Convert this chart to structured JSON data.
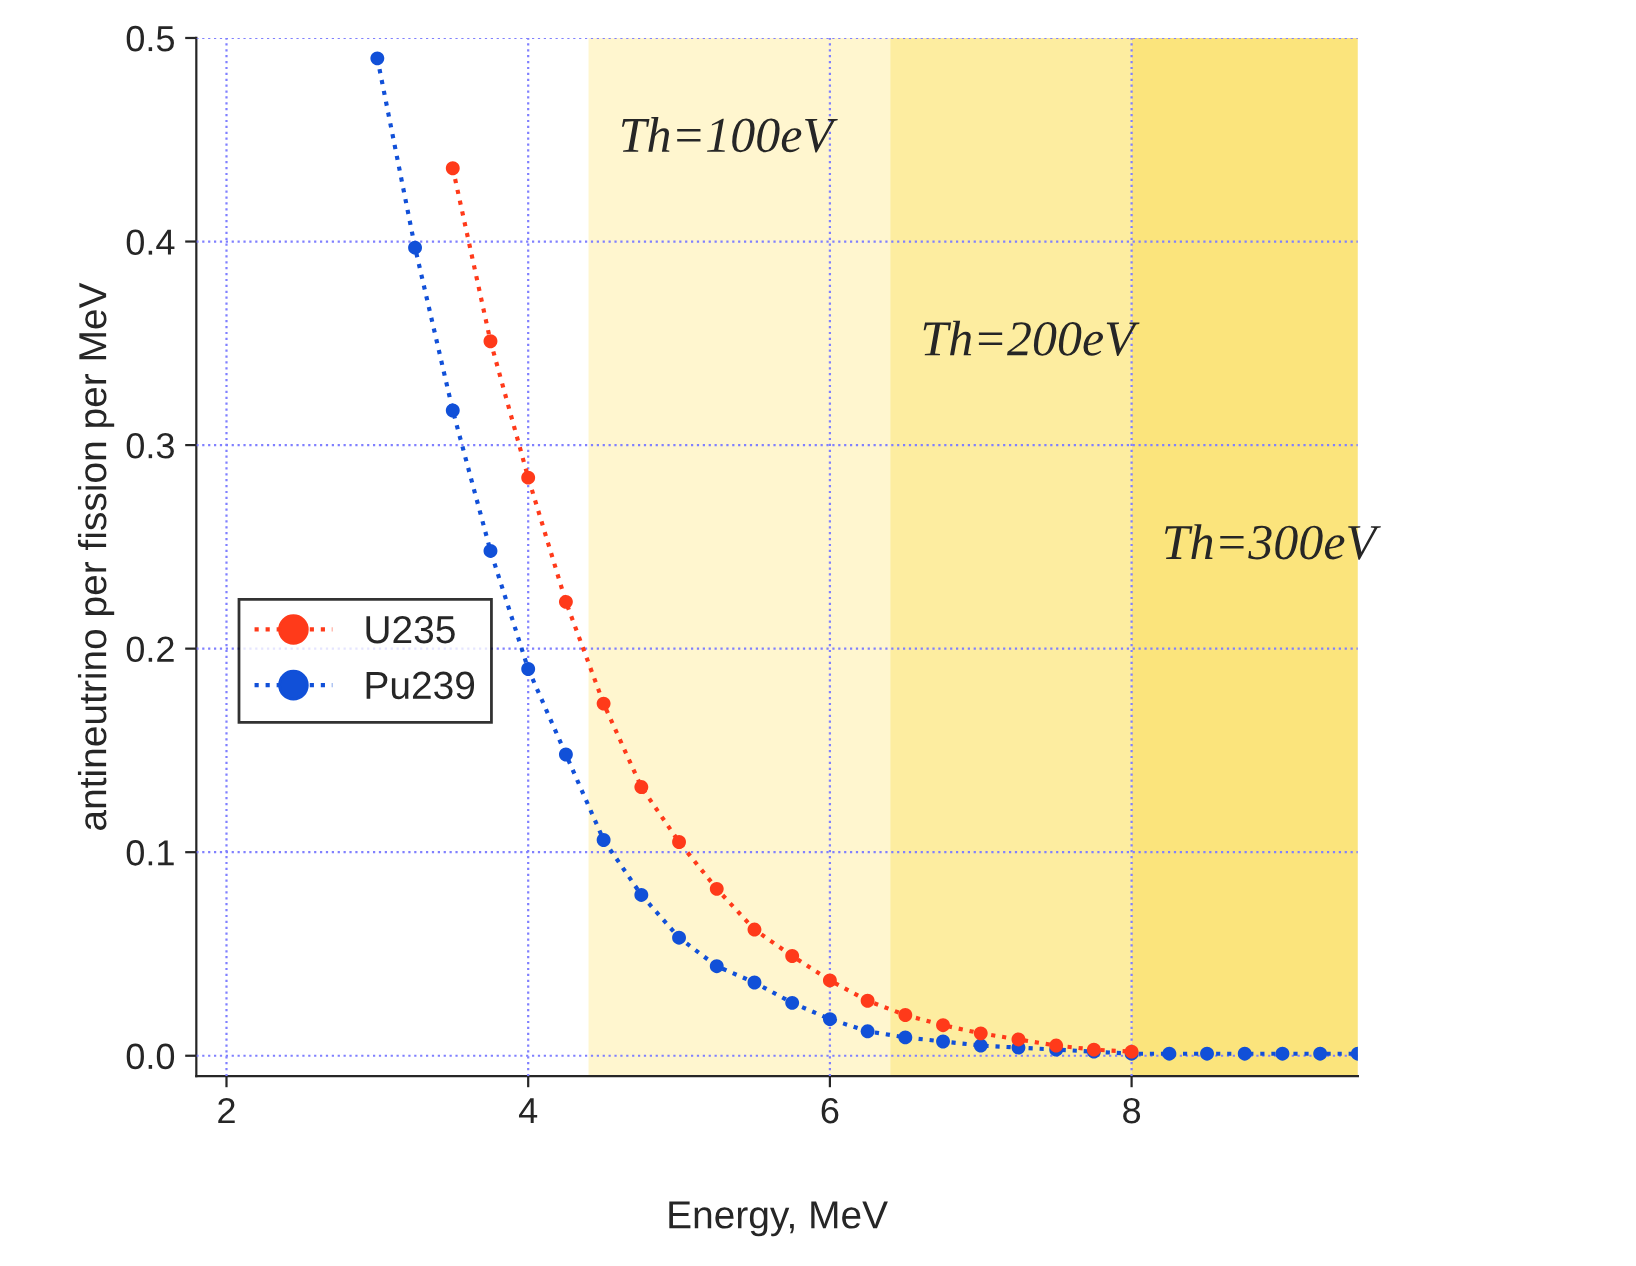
{
  "chart_data": {
    "type": "line",
    "xlabel": "Energy, MeV",
    "ylabel": "antineutrino per fission per MeV",
    "xlim": [
      1.8,
      9.5
    ],
    "ylim": [
      -0.01,
      0.5
    ],
    "xticks": [
      2,
      4,
      6,
      8
    ],
    "yticks": [
      {
        "value": 0,
        "label": "0.0"
      },
      0.1,
      0.2,
      0.3,
      0.4,
      0.5
    ],
    "grid": true,
    "legend": "left",
    "marker": "circle",
    "line_style": "dotted",
    "series": [
      {
        "name": "U235",
        "color": "#ff3a1a",
        "x": [
          3.5,
          3.75,
          4,
          4.25,
          4.5,
          4.75,
          5,
          5.25,
          5.5,
          5.75,
          6,
          6.25,
          6.5,
          6.75,
          7,
          7.25,
          7.5,
          7.75,
          8
        ],
        "values": [
          0.436,
          0.351,
          0.284,
          0.223,
          0.173,
          0.132,
          0.105,
          0.082,
          0.062,
          0.049,
          0.037,
          0.027,
          0.02,
          0.015,
          0.011,
          0.008,
          0.005,
          0.003,
          0.002
        ]
      },
      {
        "name": "Pu239",
        "color": "#1150d8",
        "x": [
          3,
          3.25,
          3.5,
          3.75,
          4,
          4.25,
          4.5,
          4.75,
          5,
          5.25,
          5.5,
          5.75,
          6,
          6.25,
          6.5,
          6.75,
          7,
          7.25,
          7.5,
          7.75,
          8,
          8.25,
          8.5,
          8.75,
          9,
          9.25,
          9.5
        ],
        "values": [
          0.49,
          0.397,
          0.317,
          0.248,
          0.19,
          0.148,
          0.106,
          0.079,
          0.058,
          0.044,
          0.036,
          0.026,
          0.018,
          0.012,
          0.009,
          0.007,
          0.005,
          0.004,
          0.003,
          0.002,
          0.001,
          0.001,
          0.001,
          0.001,
          0.001,
          0.001,
          0.001
        ]
      }
    ],
    "bands": [
      {
        "axis": "x",
        "from": 4.4,
        "to": 6.4,
        "label": "Th=100eV",
        "color": "#fff6cf"
      },
      {
        "axis": "x",
        "from": 6.4,
        "to": 8,
        "label": "Th=200eV",
        "color": "#fdeda0"
      },
      {
        "axis": "x",
        "from": 8,
        "to": 9.5,
        "label": "Th=300eV",
        "color": "#fbe47c"
      }
    ]
  }
}
